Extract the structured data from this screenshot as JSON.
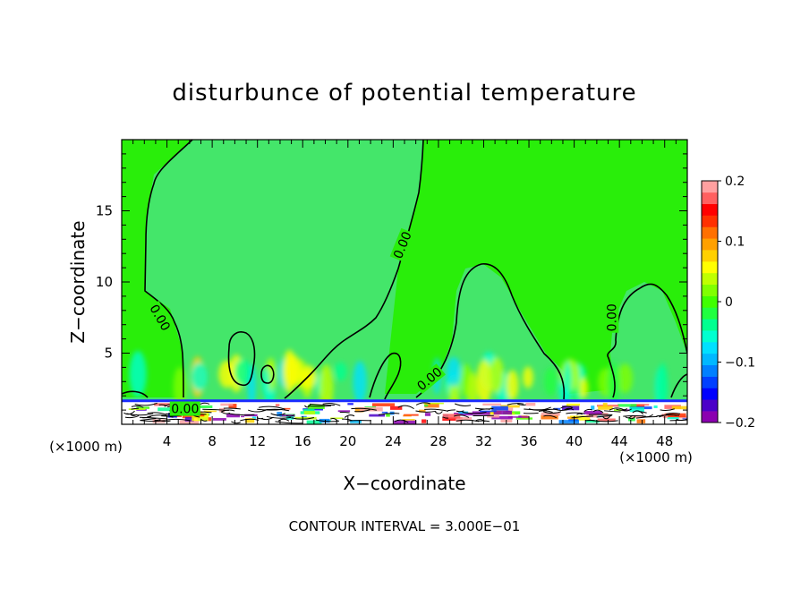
{
  "chart_data": {
    "type": "heatmap",
    "title": "disturbunce of potential temperature",
    "xlabel": "X−coordinate",
    "ylabel": "Z−coordinate",
    "x_unit_left": "(×1000 m)",
    "x_unit_right": "(×1000 m)",
    "footer": "CONTOUR INTERVAL = 3.000E−01",
    "xlim": [
      0,
      50
    ],
    "ylim": [
      0,
      20
    ],
    "x_ticks": [
      4,
      8,
      12,
      16,
      20,
      24,
      28,
      32,
      36,
      40,
      44,
      48
    ],
    "x_tick_labels": [
      "4",
      "8",
      "12",
      "16",
      "20",
      "24",
      "28",
      "32",
      "36",
      "40",
      "44",
      "48"
    ],
    "y_ticks": [
      5,
      10,
      15
    ],
    "y_tick_labels": [
      "5",
      "10",
      "15"
    ],
    "colorbar": {
      "range": [
        -0.2,
        0.2
      ],
      "tick_values": [
        0.2,
        0.1,
        0,
        -0.1,
        -0.2
      ],
      "tick_labels": [
        "0.2",
        "0.1",
        "0",
        "−0.1",
        "−0.2"
      ],
      "colors": [
        "#8b00b0",
        "#4b00c8",
        "#0000ff",
        "#0040ff",
        "#0080ff",
        "#00b8ff",
        "#00e0ff",
        "#00ffd0",
        "#00ff90",
        "#20ff40",
        "#40ff00",
        "#80ff00",
        "#c0ff00",
        "#ffff00",
        "#ffd000",
        "#ffa000",
        "#ff7000",
        "#ff3000",
        "#ff0000",
        "#ff6060",
        "#ffa0a0"
      ]
    },
    "background_value": 0,
    "background_color": "#29ee0a",
    "zero_region_color": "#44e66a",
    "contour_labels": [
      {
        "text": "0.00",
        "x": 3.4,
        "z": 7.5,
        "angle": 60
      },
      {
        "text": "0.00",
        "x": 24.8,
        "z": 12.6,
        "angle": -68
      },
      {
        "text": "0.00",
        "x": 27.2,
        "z": 3.2,
        "angle": -40
      },
      {
        "text": "0.00",
        "x": 43.3,
        "z": 7.5,
        "angle": -90
      },
      {
        "text": "0.00",
        "x": 5.6,
        "z": 1.1,
        "angle": 0
      }
    ]
  }
}
